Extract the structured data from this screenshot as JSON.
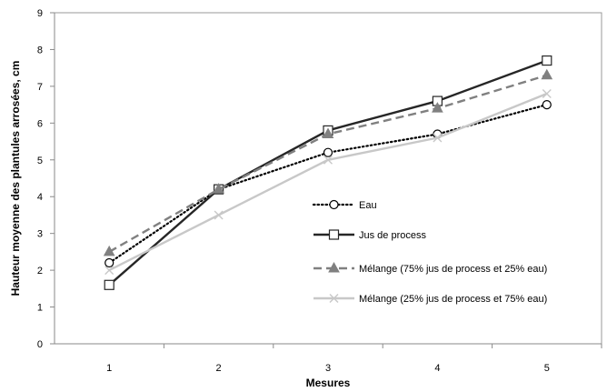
{
  "chart_data": {
    "type": "line",
    "title": "",
    "xlabel": "Mesures",
    "ylabel": "Hauteur moyenne des plantules arrosées, cm",
    "categories": [
      "1",
      "2",
      "3",
      "4",
      "5"
    ],
    "ylim": [
      0,
      9
    ],
    "yticks": [
      "0",
      "1",
      "2",
      "3",
      "4",
      "5",
      "6",
      "7",
      "8",
      "9"
    ],
    "grid": false,
    "legend_position": "right",
    "series": [
      {
        "name": "Eau",
        "values": [
          2.2,
          4.2,
          5.2,
          5.7,
          6.5
        ],
        "color": "#000000",
        "dash": "dotted",
        "marker": "circle"
      },
      {
        "name": "Jus de process",
        "values": [
          1.6,
          4.2,
          5.8,
          6.6,
          7.7
        ],
        "color": "#262626",
        "dash": "solid",
        "marker": "square"
      },
      {
        "name": "Mélange (75% jus de process et 25% eau)",
        "values": [
          2.5,
          4.2,
          5.7,
          6.4,
          7.3
        ],
        "color": "#808080",
        "dash": "dashed",
        "marker": "triangle"
      },
      {
        "name": "Mélange (25% jus de process et 75% eau)",
        "values": [
          2.0,
          3.5,
          5.0,
          5.6,
          6.8
        ],
        "color": "#c8c8c8",
        "dash": "solid",
        "marker": "x"
      }
    ]
  }
}
